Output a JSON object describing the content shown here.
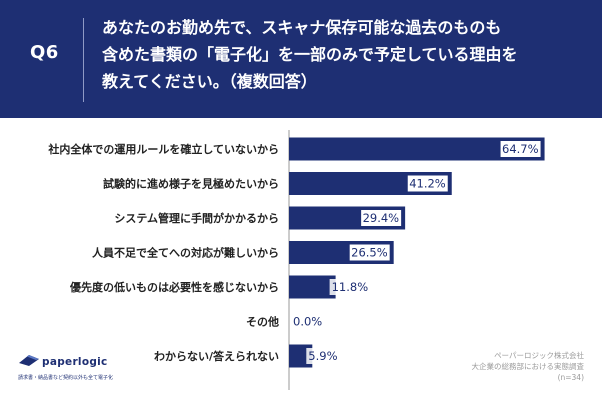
{
  "header": {
    "question_no": "Q6",
    "question_lines": [
      "あなたのお勤め先で、スキャナ保存可能な過去のものも",
      "含めた書類の「電子化」を一部のみで予定している理由を",
      "教えてください。（複数回答）"
    ]
  },
  "chart_data": {
    "type": "bar",
    "orientation": "horizontal",
    "categories": [
      "社内全体での運用ルールを確立していないから",
      "試験的に進め様子を見極めたいから",
      "システム管理に手間がかかるから",
      "人員不足で全てへの対応が難しいから",
      "優先度の低いものは必要性を感じないから",
      "その他",
      "わからない/答えられない"
    ],
    "values": [
      64.7,
      41.2,
      29.4,
      26.5,
      11.8,
      0.0,
      5.9
    ],
    "value_labels": [
      "64.7%",
      "41.2%",
      "29.4%",
      "26.5%",
      "11.8%",
      "0.0%",
      "5.9%"
    ],
    "xlim": [
      0,
      70
    ],
    "bar_color": "#1e2f73",
    "value_label_color": "#1e2f73",
    "grid": false
  },
  "logo": {
    "name": "paperlogic",
    "tagline": "請求書・納品書など契約以外も全て電子化"
  },
  "source": {
    "line1": "ペーパーロジック株式会社",
    "line2": "大企業の総務部における実態調査",
    "line3": "(n=34)"
  }
}
